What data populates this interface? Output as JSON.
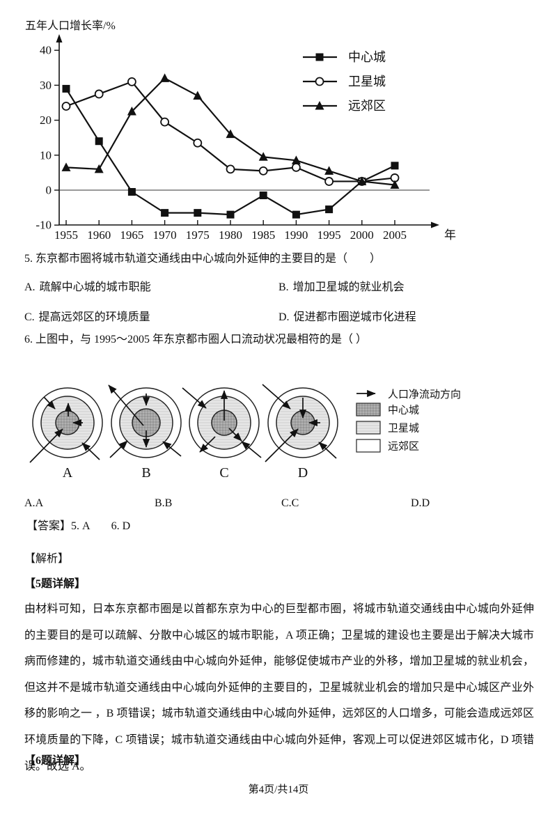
{
  "chart_data": {
    "type": "line",
    "title": "",
    "ylabel": "五年人口增长率/%",
    "x_unit": "年",
    "categories": [
      "1955",
      "1960",
      "1965",
      "1970",
      "1975",
      "1980",
      "1985",
      "1990",
      "1995",
      "2000",
      "2005"
    ],
    "ylim": [
      -10,
      40
    ],
    "yticks": [
      40,
      30,
      20,
      10,
      0,
      -10
    ],
    "grid": false,
    "legend_position": "top-right",
    "series": [
      {
        "name": "中心城",
        "marker": "square",
        "values": [
          29,
          14,
          -0.5,
          -6.5,
          -6.5,
          -7,
          -1.5,
          -7,
          -5.5,
          2.5,
          7
        ]
      },
      {
        "name": "卫星城",
        "marker": "circle",
        "values": [
          24,
          27.5,
          31,
          19.5,
          13.5,
          6,
          5.5,
          6.5,
          2.5,
          2.5,
          3.5
        ]
      },
      {
        "name": "远郊区",
        "marker": "triangle",
        "values": [
          6.5,
          6,
          22.5,
          32,
          27,
          16,
          9.5,
          8.5,
          5.5,
          2.5,
          1.5
        ]
      }
    ]
  },
  "question5": {
    "stem": "5. 东京都市圈将城市轨道交通线由中心城向外延伸的主要目的是（　　）",
    "options": [
      {
        "label": "A.",
        "text": "疏解中心城的城市职能"
      },
      {
        "label": "B.",
        "text": "增加卫星城的就业机会"
      },
      {
        "label": "C.",
        "text": "提高远郊区的环境质量"
      },
      {
        "label": "D.",
        "text": "促进都市圈逆城市化进程"
      }
    ]
  },
  "question6": {
    "stem": "6. 上图中，与 1995～2005 年东京都市圈人口流动状况最相符的是（ ）",
    "legend": {
      "flow": "人口净流动方向",
      "center": "中心城",
      "satellite": "卫星城",
      "suburb": "远郊区"
    },
    "diagrams": [
      {
        "label": "A",
        "inner_r": 17,
        "arrows": [
          [
            -34,
            -37,
            -18,
            -20
          ],
          [
            1,
            -9,
            1,
            -28
          ],
          [
            22,
            0,
            8,
            0
          ],
          [
            -54,
            57,
            -7,
            9
          ],
          [
            46,
            53,
            21,
            29
          ]
        ]
      },
      {
        "label": "B",
        "inner_r": 20,
        "arrows": [
          [
            -4,
            4,
            -54,
            -54
          ],
          [
            0,
            -42,
            0,
            -25
          ],
          [
            0,
            11,
            0,
            35
          ],
          [
            -52,
            50,
            -27,
            26
          ],
          [
            50,
            48,
            24,
            27
          ]
        ]
      },
      {
        "label": "C",
        "inner_r": 18,
        "arrows": [
          [
            -60,
            -50,
            -26,
            -21
          ],
          [
            0,
            -3,
            0,
            -46
          ],
          [
            7,
            8,
            25,
            26
          ],
          [
            -13,
            20,
            -35,
            42
          ],
          [
            53,
            50,
            25,
            27
          ]
        ]
      },
      {
        "label": "D",
        "inner_r": 17,
        "arrows": [
          [
            -58,
            -55,
            -18,
            -20
          ],
          [
            0,
            -36,
            0,
            -7
          ],
          [
            25,
            0,
            9,
            0
          ],
          [
            -54,
            56,
            -7,
            9
          ],
          [
            48,
            51,
            23,
            28
          ]
        ]
      }
    ],
    "options": [
      {
        "label": "A.",
        "text": "A"
      },
      {
        "label": "B.",
        "text": "B"
      },
      {
        "label": "C.",
        "text": "C"
      },
      {
        "label": "D.",
        "text": "D"
      }
    ]
  },
  "answer": {
    "label": "【答案】",
    "q5": "5. A",
    "q6": "6. D"
  },
  "analysis": {
    "header": "【解析】",
    "q5_header": "【5题详解】",
    "q5_body": "由材料可知，日本东京都市圈是以首都东京为中心的巨型都市圈，将城市轨道交通线由中心城向外延伸的主要目的是可以疏解、分散中心城区的城市职能，A 项正确；卫星城的建设也主要是出于解决大城市病而修建的，城市轨道交通线由中心城向外延伸，能够促使城市产业的外移，增加卫星城的就业机会，但这并不是城市轨道交通线由中心城向外延伸的主要目的，卫星城就业机会的增加只是中心城区产业外移的影响之一 ，B 项错误；城市轨道交通线由中心城向外延伸，远郊区的人口增多，可能会造成远郊区环境质量的下降，C 项错误；城市轨道交通线由中心城向外延伸，客观上可以促进郊区城市化，D 项错误。故选 A。",
    "q6_header": "【6题详解】"
  },
  "footer": "第4页/共14页"
}
